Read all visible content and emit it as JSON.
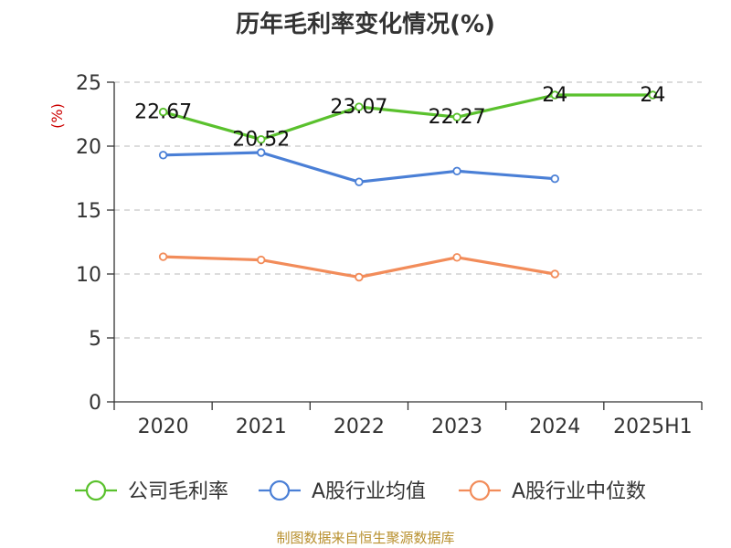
{
  "chart_data": {
    "type": "line",
    "title": "历年毛利率变化情况(%)",
    "ylabel": "(%)",
    "xlabel": "",
    "categories": [
      "2020",
      "2021",
      "2022",
      "2023",
      "2024",
      "2025H1"
    ],
    "ylim": [
      0,
      25
    ],
    "yticks": [
      0,
      5,
      10,
      15,
      20,
      25
    ],
    "grid": true,
    "legend_position": "bottom",
    "series": [
      {
        "name": "公司毛利率",
        "color": "#5ac12d",
        "values": [
          22.67,
          20.52,
          23.07,
          22.27,
          24,
          24
        ],
        "labels": [
          "22.67",
          "20.52",
          "23.07",
          "22.27",
          "24",
          "24"
        ]
      },
      {
        "name": "A股行业均值",
        "color": "#4a7fd6",
        "values": [
          19.3,
          19.5,
          17.2,
          18.05,
          17.45,
          null
        ]
      },
      {
        "name": "A股行业中位数",
        "color": "#f28c5a",
        "values": [
          11.35,
          11.1,
          9.75,
          11.3,
          10.0,
          null
        ]
      }
    ]
  },
  "source_text": "制图数据来自恒生聚源数据库"
}
